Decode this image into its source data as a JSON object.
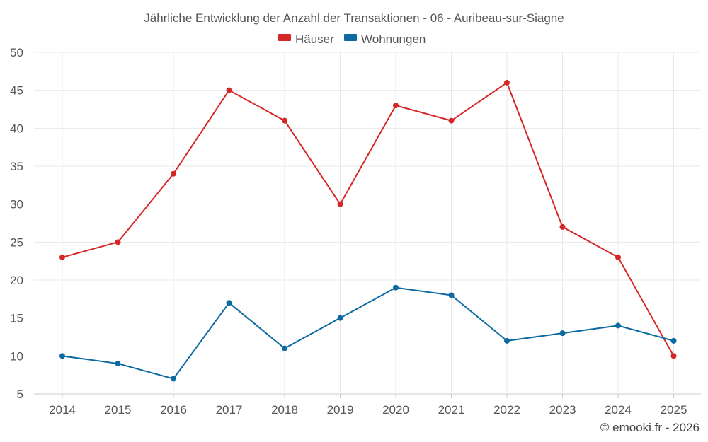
{
  "chart_data": {
    "type": "line",
    "title": "Jährliche Entwicklung der Anzahl der Transaktionen - 06 - Auribeau-sur-Siagne",
    "categories": [
      "2014",
      "2015",
      "2016",
      "2017",
      "2018",
      "2019",
      "2020",
      "2021",
      "2022",
      "2023",
      "2024",
      "2025"
    ],
    "series": [
      {
        "name": "Häuser",
        "color": "#d62728",
        "values": [
          23,
          25,
          34,
          45,
          41,
          30,
          43,
          41,
          46,
          27,
          23,
          10
        ]
      },
      {
        "name": "Wohnungen",
        "color": "#0a6aa1",
        "values": [
          10,
          9,
          7,
          17,
          11,
          15,
          19,
          18,
          12,
          13,
          14,
          12
        ]
      }
    ],
    "ylim": [
      5,
      50
    ],
    "yticks": [
      5,
      10,
      15,
      20,
      25,
      30,
      35,
      40,
      45,
      50
    ],
    "xlabel": "",
    "ylabel": "",
    "grid": true,
    "legend_position": "top-center"
  },
  "credit": "© emooki.fr - 2026"
}
